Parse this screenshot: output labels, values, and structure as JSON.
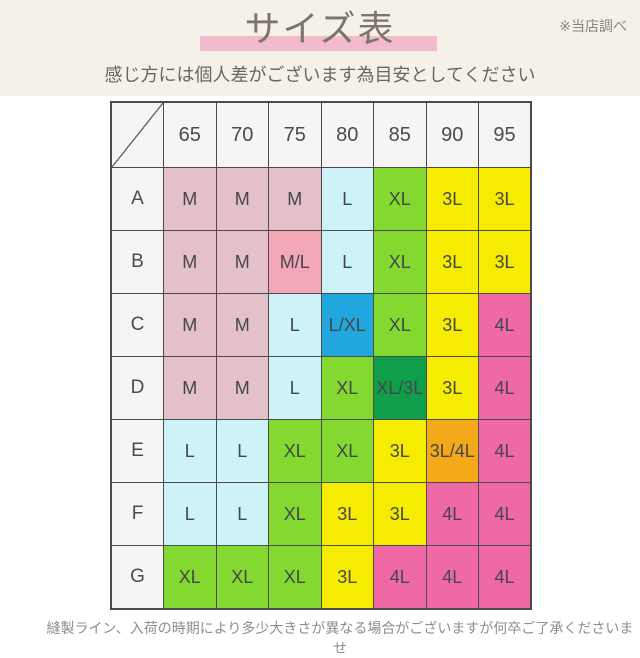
{
  "header": {
    "title": "サイズ表",
    "note": "※当店調べ",
    "subtitle": "感じ方には個人差がございます為目安としてください"
  },
  "footer": {
    "text": "縫製ライン、入荷の時期により多少大きさが異なる場合がございますが何卒ご了承くださいませ"
  },
  "chart_data": {
    "type": "table",
    "title": "サイズ表",
    "columns": [
      "65",
      "70",
      "75",
      "80",
      "85",
      "90",
      "95"
    ],
    "rows": [
      "A",
      "B",
      "C",
      "D",
      "E",
      "F",
      "G"
    ],
    "cells": [
      [
        "M",
        "M",
        "M",
        "L",
        "XL",
        "3L",
        "3L"
      ],
      [
        "M",
        "M",
        "M/L",
        "L",
        "XL",
        "3L",
        "3L"
      ],
      [
        "M",
        "M",
        "L",
        "L/XL",
        "XL",
        "3L",
        "4L"
      ],
      [
        "M",
        "M",
        "L",
        "XL",
        "XL/3L",
        "3L",
        "4L"
      ],
      [
        "L",
        "L",
        "XL",
        "XL",
        "3L",
        "3L/4L",
        "4L"
      ],
      [
        "L",
        "L",
        "XL",
        "3L",
        "3L",
        "4L",
        "4L"
      ],
      [
        "XL",
        "XL",
        "XL",
        "3L",
        "4L",
        "4L",
        "4L"
      ]
    ]
  },
  "size_colors": {
    "M": "#e4c0c9",
    "M/L": "#f3a7b6",
    "L": "#cdf2f8",
    "L/XL": "#21a7de",
    "XL": "#83d930",
    "XL/3L": "#0f9f4b",
    "3L": "#f6ec00",
    "3L/4L": "#f3a918",
    "4L": "#ef6aa4"
  },
  "colors": {
    "header_band_bg": "#f6f1e8",
    "title_underline": "#f3bacd",
    "grid_border": "#4b4b4b",
    "header_cell_bg": "#f5f5f3"
  }
}
